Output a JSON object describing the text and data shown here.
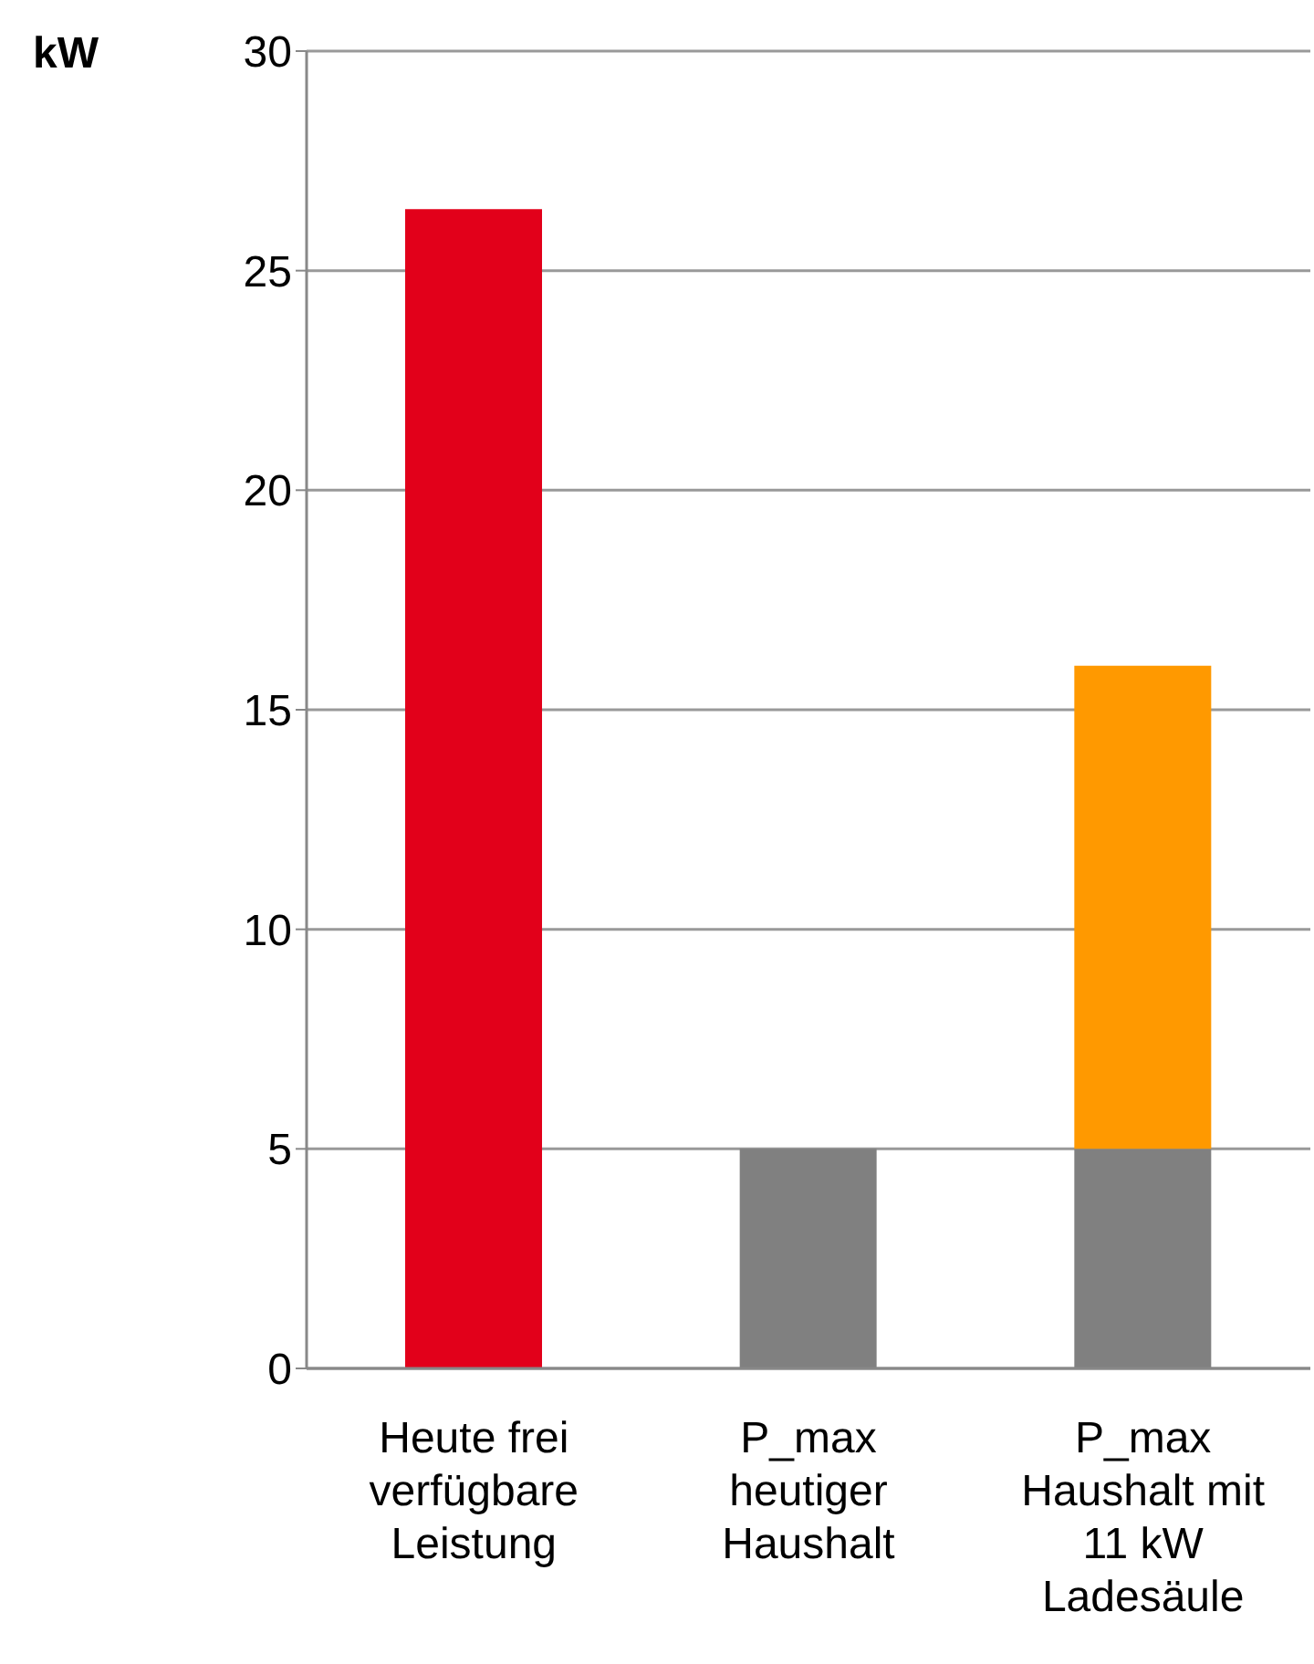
{
  "chart_data": {
    "type": "bar",
    "ylabel": "kW",
    "categories": [
      "Heute frei verfügbare Leistung",
      "P_max heutiger Haushalt",
      "P_max Haushalt mit 11 kW Ladesäule"
    ],
    "stacked": true,
    "series": [
      {
        "colors": [
          "#e2001a",
          "#808080",
          "#808080"
        ],
        "values": [
          26.4,
          5,
          5
        ]
      },
      {
        "color": "#ff9900",
        "values": [
          null,
          null,
          11
        ]
      }
    ],
    "ylim": [
      0,
      30
    ],
    "yticks": [
      0,
      5,
      10,
      15,
      20,
      25,
      30
    ],
    "grid": "y",
    "legend": false
  }
}
